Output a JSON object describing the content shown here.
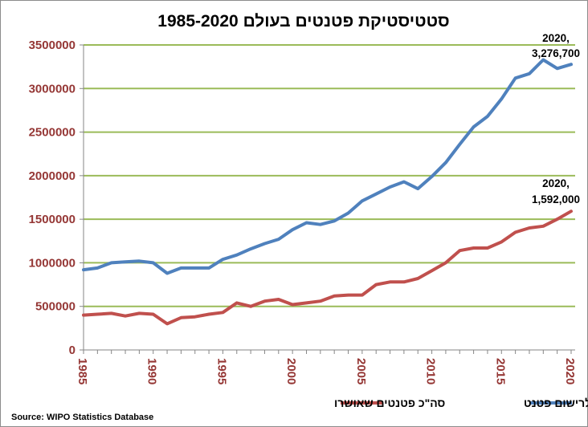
{
  "chart_data": {
    "type": "line",
    "title": "סטטיסטיקת פטנטים בעולם 1985-2020",
    "source": "Source: WIPO Statistics Database",
    "ylim": [
      0,
      3500000
    ],
    "yticks": [
      "3500000",
      "3000000",
      "2500000",
      "2000000",
      "1500000",
      "1000000",
      "500000",
      "0"
    ],
    "ytick_values": [
      3500000,
      3000000,
      2500000,
      2000000,
      1500000,
      1000000,
      500000,
      0
    ],
    "xlim": [
      1985,
      2020
    ],
    "xticks": [
      "1985",
      "1990",
      "1995",
      "2000",
      "2005",
      "2010",
      "2015",
      "2020"
    ],
    "xtick_values": [
      1985,
      1990,
      1995,
      2000,
      2005,
      2010,
      2015,
      2020
    ],
    "grid": true,
    "legend_position": "bottom",
    "colors": {
      "applications": "#4f81bd",
      "grants": "#c0504d",
      "grid": "#9bbb59",
      "ticks": "#953735"
    },
    "x": [
      1985,
      1986,
      1987,
      1988,
      1989,
      1990,
      1991,
      1992,
      1993,
      1994,
      1995,
      1996,
      1997,
      1998,
      1999,
      2000,
      2001,
      2002,
      2003,
      2004,
      2005,
      2006,
      2007,
      2008,
      2009,
      2010,
      2011,
      2012,
      2013,
      2014,
      2015,
      2016,
      2017,
      2018,
      2019,
      2020
    ],
    "series": [
      {
        "name": "סה\"כ בקשות לרישום פטנט",
        "key": "applications",
        "values": [
          920000,
          940000,
          1000000,
          1010000,
          1020000,
          1000000,
          880000,
          940000,
          940000,
          940000,
          1040000,
          1090000,
          1160000,
          1220000,
          1270000,
          1380000,
          1460000,
          1440000,
          1480000,
          1570000,
          1710000,
          1790000,
          1870000,
          1930000,
          1850000,
          1990000,
          2150000,
          2360000,
          2560000,
          2680000,
          2880000,
          3120000,
          3170000,
          3330000,
          3230000,
          3276700
        ]
      },
      {
        "name": "סה\"כ פטנטים שאושרו",
        "key": "grants",
        "values": [
          400000,
          410000,
          420000,
          390000,
          420000,
          410000,
          300000,
          370000,
          380000,
          410000,
          430000,
          540000,
          500000,
          560000,
          580000,
          520000,
          540000,
          560000,
          620000,
          630000,
          630000,
          750000,
          780000,
          780000,
          820000,
          910000,
          1000000,
          1140000,
          1170000,
          1170000,
          1240000,
          1350000,
          1400000,
          1420000,
          1500000,
          1592000
        ]
      }
    ],
    "annotations": [
      {
        "series": "applications",
        "line1": "2020,",
        "line2": "3,276,700"
      },
      {
        "series": "grants",
        "line1": "2020,",
        "line2": "1,592,000"
      }
    ]
  }
}
